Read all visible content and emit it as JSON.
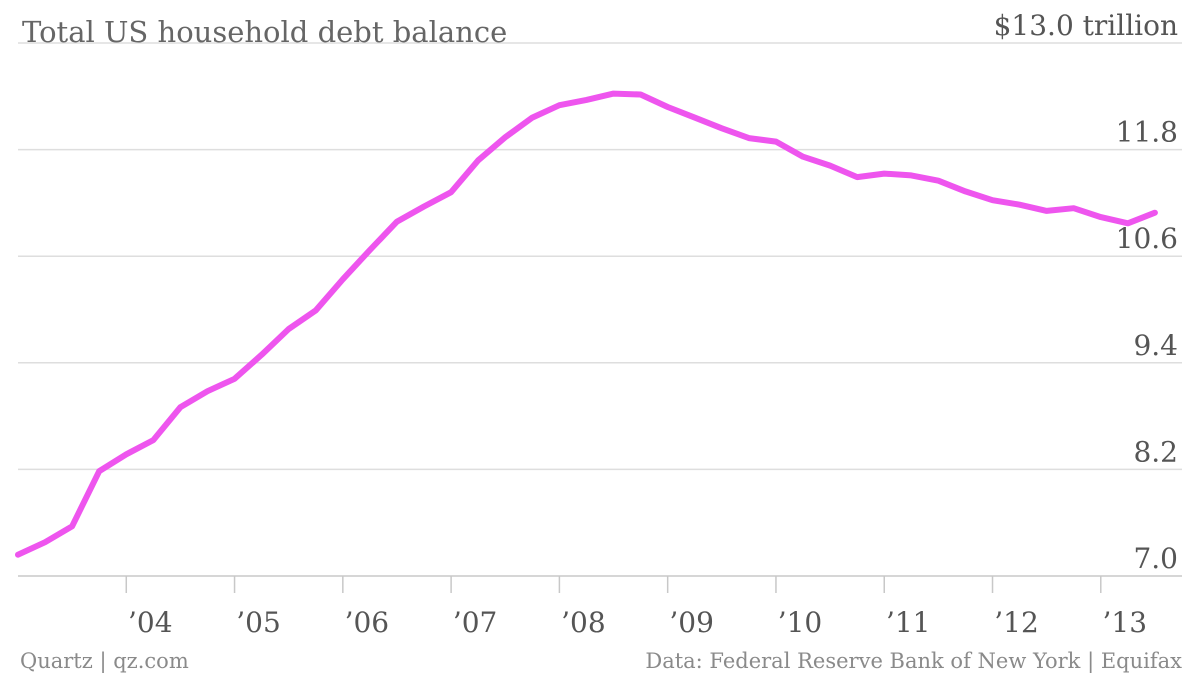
{
  "chart_data": {
    "type": "line",
    "title": "Total US household debt balance",
    "ytick_labels": [
      "7.0",
      "8.2",
      "9.4",
      "10.6",
      "11.8",
      "$13.0 trillion"
    ],
    "yticks": [
      7.0,
      8.2,
      9.4,
      10.6,
      11.8,
      13.0
    ],
    "ylim": [
      7.0,
      13.0
    ],
    "xlim": [
      2003.0,
      2013.75
    ],
    "xtick_labels": [
      "’04",
      "’05",
      "’06",
      "’07",
      "’08",
      "’09",
      "’10",
      "’11",
      "’12",
      "’13"
    ],
    "xticks": [
      2004,
      2005,
      2006,
      2007,
      2008,
      2009,
      2010,
      2011,
      2012,
      2013
    ],
    "grid": true,
    "series": [
      {
        "color": "#ee55ee",
        "x": [
          2003.0,
          2003.25,
          2003.5,
          2003.75,
          2004.0,
          2004.25,
          2004.5,
          2004.75,
          2005.0,
          2005.25,
          2005.5,
          2005.75,
          2006.0,
          2006.25,
          2006.5,
          2006.75,
          2007.0,
          2007.25,
          2007.5,
          2007.75,
          2008.0,
          2008.25,
          2008.5,
          2008.75,
          2009.0,
          2009.25,
          2009.5,
          2009.75,
          2010.0,
          2010.25,
          2010.5,
          2010.75,
          2011.0,
          2011.25,
          2011.5,
          2011.75,
          2012.0,
          2012.25,
          2012.5,
          2012.75,
          2013.0,
          2013.25,
          2013.5
        ],
        "y": [
          7.24,
          7.38,
          7.56,
          8.18,
          8.37,
          8.53,
          8.9,
          9.08,
          9.22,
          9.49,
          9.78,
          9.99,
          10.34,
          10.67,
          10.99,
          11.16,
          11.32,
          11.68,
          11.94,
          12.16,
          12.3,
          12.36,
          12.43,
          12.42,
          12.28,
          12.16,
          12.04,
          11.93,
          11.89,
          11.72,
          11.62,
          11.49,
          11.53,
          11.51,
          11.45,
          11.33,
          11.23,
          11.18,
          11.11,
          11.14,
          11.04,
          10.97,
          11.09
        ]
      }
    ]
  },
  "footer": {
    "left": "Quartz | qz.com",
    "right": "Data: Federal Reserve Bank of New York | Equifax"
  }
}
